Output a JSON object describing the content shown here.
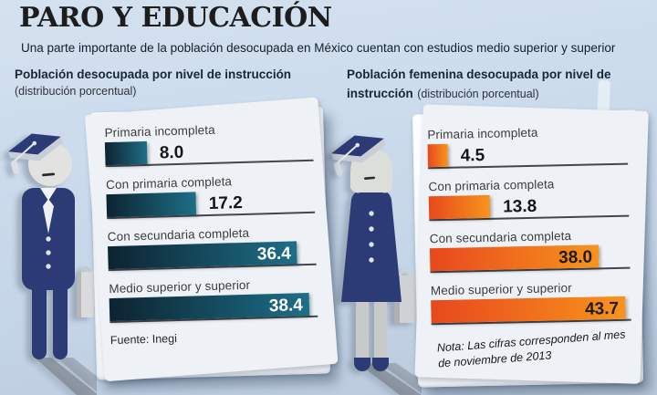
{
  "page": {
    "title": "PARO Y EDUCACIÓN",
    "subtitle": "Una parte importante de la población desocupada en México cuentan con estudios medio superior y superior"
  },
  "figures": {
    "male": "graduado-hombre",
    "female": "graduada-mujer",
    "suit_color": "#2c3b76",
    "gray_color": "#d9dbdc"
  },
  "chart_data": [
    {
      "type": "bar",
      "orientation": "horizontal",
      "title": "Población desocupada por nivel de instrucción",
      "subtitle": "(distribución porcentual)",
      "categories": [
        "Primaria incompleta",
        "Con primaria completa",
        "Con secundaria completa",
        "Medio superior y superior"
      ],
      "values": [
        8.0,
        17.2,
        36.4,
        38.4
      ],
      "value_labels": [
        "8.0",
        "17.2",
        "36.4",
        "38.4"
      ],
      "xlim": [
        0,
        40
      ],
      "grid": false,
      "legend": "none",
      "source": "Fuente: Inegi",
      "bar_color_start": "#0d2331",
      "bar_color_end": "#1d6f88",
      "value_inside_color": "#ffffff",
      "value_outside_color": "#15151a"
    },
    {
      "type": "bar",
      "orientation": "horizontal",
      "title": "Población femenina desocupada por nivel de instrucción",
      "subtitle": "(distribución porcentual)",
      "categories": [
        "Primaria incompleta",
        "Con primaria completa",
        "Con secundaria completa",
        "Medio superior y superior"
      ],
      "values": [
        4.5,
        13.8,
        38.0,
        43.7
      ],
      "value_labels": [
        "4.5",
        "13.8",
        "38.0",
        "43.7"
      ],
      "xlim": [
        0,
        45
      ],
      "grid": false,
      "legend": "none",
      "note": "Nota: Las cifras corresponden al mes de noviembre de 2013",
      "bar_color_start": "#e8481d",
      "bar_color_end": "#f7941d",
      "value_inside_color": "#1d1d1b",
      "value_outside_color": "#15151a"
    }
  ]
}
